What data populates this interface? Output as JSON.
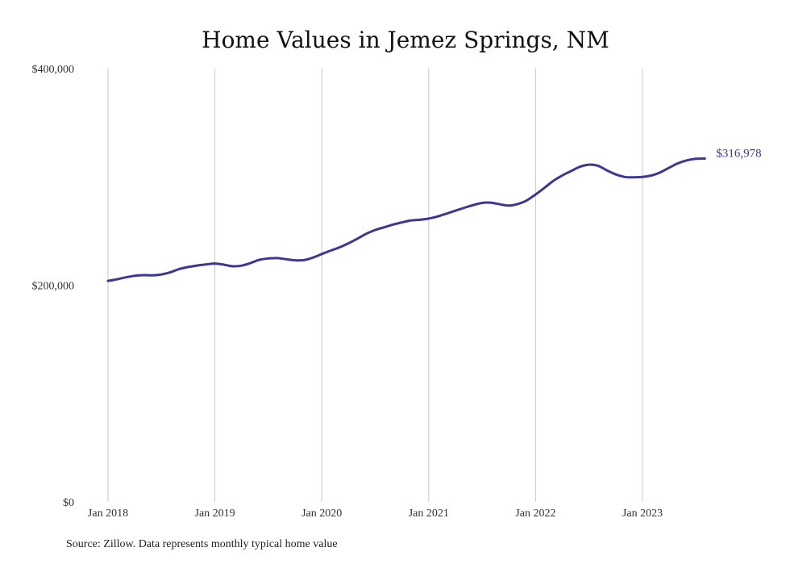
{
  "chart_data": {
    "type": "line",
    "title": "Home Values in Jemez Springs, NM",
    "ylim": [
      0,
      400000
    ],
    "y_ticks": [
      {
        "value": 0,
        "label": "$0"
      },
      {
        "value": 200000,
        "label": "$200,000"
      },
      {
        "value": 400000,
        "label": "$400,000"
      }
    ],
    "x_ticks": [
      "Jan 2018",
      "Jan 2019",
      "Jan 2020",
      "Jan 2021",
      "Jan 2022",
      "Jan 2023"
    ],
    "grid": "vertical",
    "line_color": "#3c3696",
    "end_label": "$316,978",
    "series": [
      {
        "x": [
          "2018-01",
          "2018-02",
          "2018-03",
          "2018-04",
          "2018-05",
          "2018-06",
          "2018-07",
          "2018-08",
          "2018-09",
          "2018-10",
          "2018-11",
          "2018-12",
          "2019-01",
          "2019-02",
          "2019-03",
          "2019-04",
          "2019-05",
          "2019-06",
          "2019-07",
          "2019-08",
          "2019-09",
          "2019-10",
          "2019-11",
          "2019-12",
          "2020-01",
          "2020-02",
          "2020-03",
          "2020-04",
          "2020-05",
          "2020-06",
          "2020-07",
          "2020-08",
          "2020-09",
          "2020-10",
          "2020-11",
          "2020-12",
          "2021-01",
          "2021-02",
          "2021-03",
          "2021-04",
          "2021-05",
          "2021-06",
          "2021-07",
          "2021-08",
          "2021-09",
          "2021-10",
          "2021-11",
          "2021-12",
          "2022-01",
          "2022-02",
          "2022-03",
          "2022-04",
          "2022-05",
          "2022-06",
          "2022-07",
          "2022-08",
          "2022-09",
          "2022-10",
          "2022-11",
          "2022-12",
          "2023-01",
          "2023-02",
          "2023-03",
          "2023-04",
          "2023-05",
          "2023-06",
          "2023-07",
          "2023-08"
        ],
        "values": [
          204000,
          205500,
          207300,
          208700,
          209300,
          209100,
          210000,
          212000,
          215000,
          216800,
          218200,
          219200,
          220000,
          219000,
          217500,
          218100,
          220500,
          223500,
          224700,
          225000,
          224000,
          223000,
          223200,
          225500,
          228800,
          232000,
          235000,
          238700,
          243000,
          247500,
          251000,
          253500,
          256000,
          258000,
          259800,
          260400,
          261500,
          263500,
          266100,
          268800,
          271500,
          274000,
          276000,
          276200,
          274700,
          273500,
          275000,
          278300,
          283800,
          290000,
          296400,
          301400,
          305500,
          309400,
          311300,
          310300,
          306100,
          302300,
          300000,
          299600,
          300000,
          301300,
          304200,
          308500,
          312600,
          315300,
          316700,
          316978
        ]
      }
    ]
  },
  "source_text": "Source: Zillow. Data represents monthly typical home value"
}
